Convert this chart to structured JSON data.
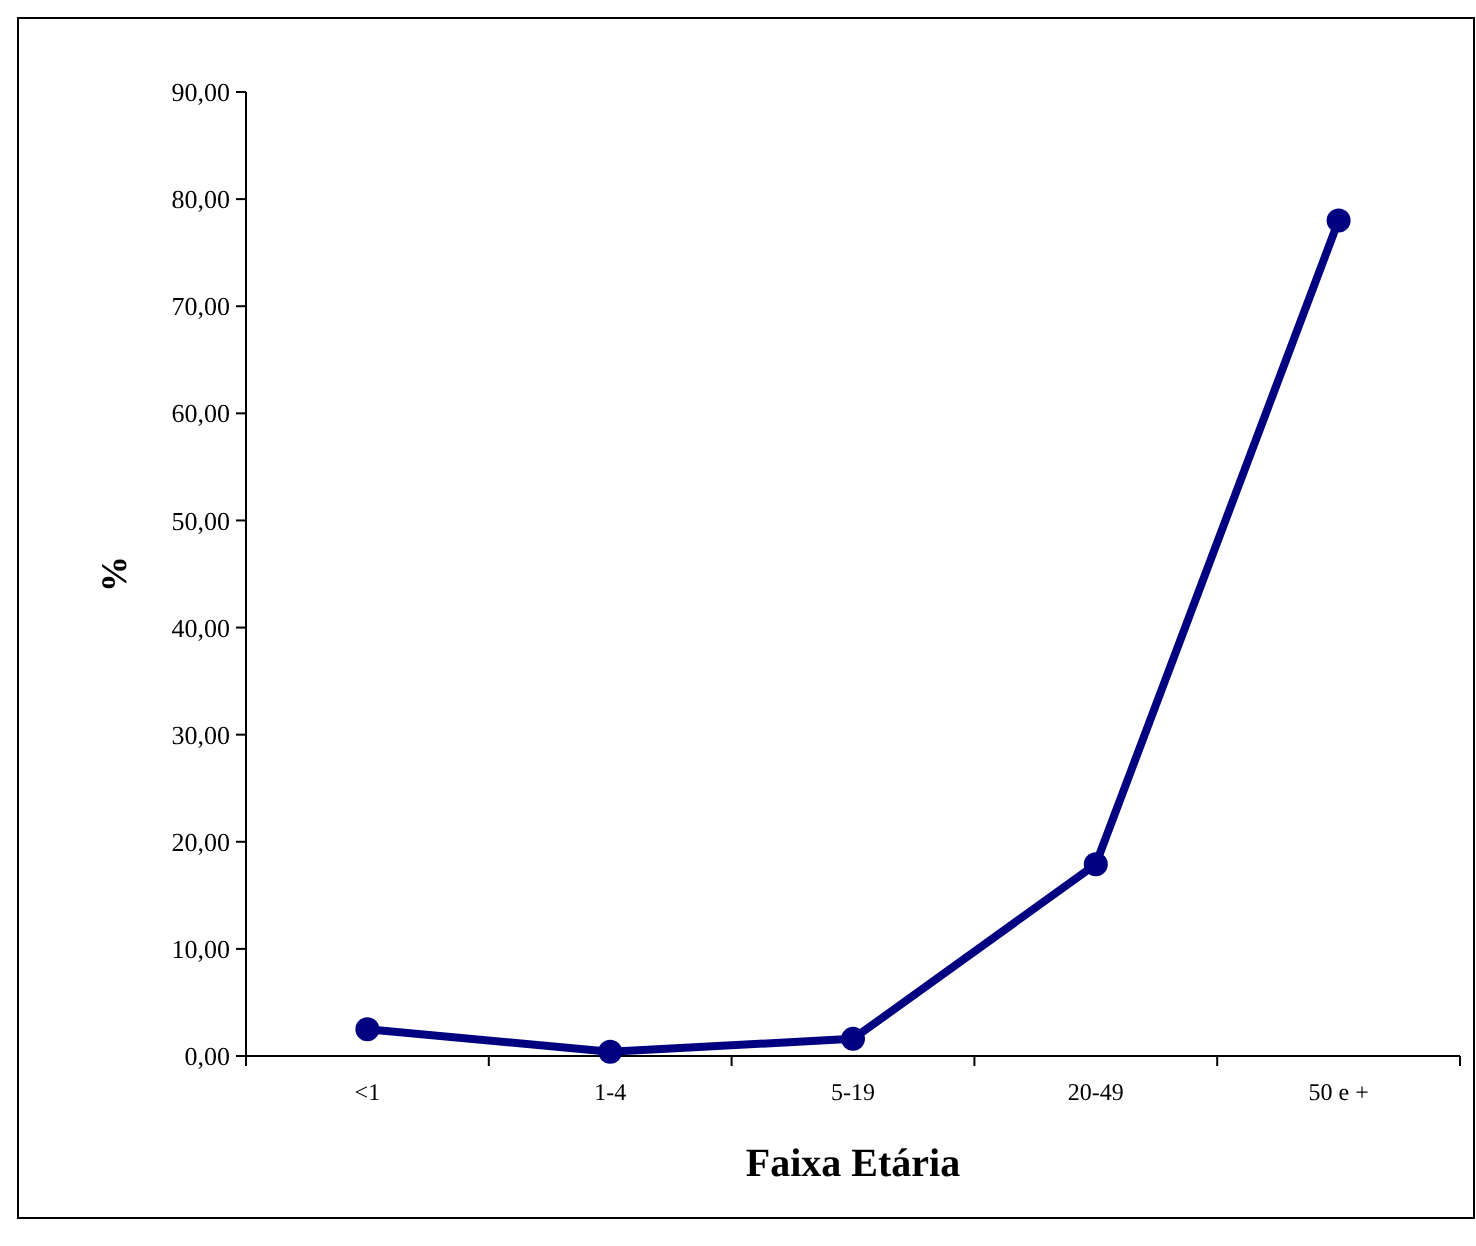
{
  "chart_data": {
    "type": "line",
    "xlabel": "Faixa Etária",
    "ylabel": "%",
    "categories": [
      "<1",
      "1-4",
      "5-19",
      "20-49",
      "50 e +"
    ],
    "series": [
      {
        "color": "#000080",
        "values": [
          2.5,
          0.4,
          1.6,
          17.9,
          78.0
        ]
      }
    ],
    "ylim": [
      0,
      90
    ],
    "yticks": [
      {
        "value": 0,
        "label": "0,00"
      },
      {
        "value": 10,
        "label": "10,00"
      },
      {
        "value": 20,
        "label": "20,00"
      },
      {
        "value": 30,
        "label": "30,00"
      },
      {
        "value": 40,
        "label": "40,00"
      },
      {
        "value": 50,
        "label": "50,00"
      },
      {
        "value": 60,
        "label": "60,00"
      },
      {
        "value": 70,
        "label": "70,00"
      },
      {
        "value": 80,
        "label": "80,00"
      },
      {
        "value": 90,
        "label": "90,00"
      }
    ],
    "marker": "circle",
    "line_style": "solid",
    "grid": false
  }
}
